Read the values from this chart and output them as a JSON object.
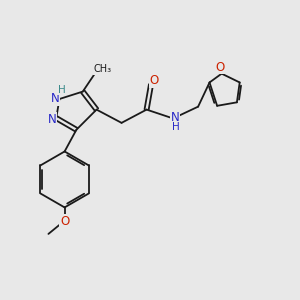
{
  "bg_color": "#e8e8e8",
  "bond_color": "#1a1a1a",
  "N_color": "#2828c8",
  "O_color": "#cc2200",
  "teal_color": "#3a8a8a",
  "font_size": 7.5,
  "figsize": [
    3.0,
    3.0
  ],
  "dpi": 100,
  "lw": 1.3,
  "xlim": [
    0,
    10
  ],
  "ylim": [
    0,
    10
  ]
}
